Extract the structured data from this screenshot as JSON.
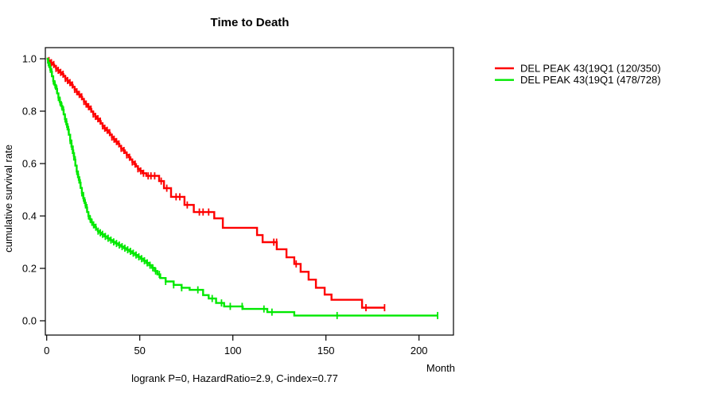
{
  "title": "Time to Death",
  "subtitle": "logrank P=0, HazardRatio=2.9, C-index=0.77",
  "axes": {
    "x": {
      "label": "Month",
      "ticks": [
        0,
        50,
        100,
        150,
        200
      ],
      "min": 0,
      "max": 218
    },
    "y": {
      "label": "cumulative survival rate",
      "ticks": [
        {
          "v": 0.0,
          "label": "0.0"
        },
        {
          "v": 0.2,
          "label": "0.2"
        },
        {
          "v": 0.4,
          "label": "0.4"
        },
        {
          "v": 0.6,
          "label": "0.6"
        },
        {
          "v": 0.8,
          "label": "0.8"
        },
        {
          "v": 1.0,
          "label": "1.0"
        }
      ],
      "min": 0.0,
      "max": 1.0
    }
  },
  "legend": {
    "items": [
      {
        "label": "DEL PEAK 43(19Q1 (120/350)",
        "color": "#fe0000"
      },
      {
        "label": "DEL PEAK 43(19Q1 (478/728)",
        "color": "#00e800"
      }
    ]
  },
  "chart_data": {
    "type": "line",
    "subtype": "kaplan_meier_step",
    "title": "Time to Death",
    "xlabel": "Month",
    "ylabel": "cumulative survival rate",
    "annotation": "logrank P=0, HazardRatio=2.9, C-index=0.77",
    "xlim": [
      0,
      218
    ],
    "ylim": [
      0.0,
      1.0
    ],
    "grid": false,
    "legend_position": "top-right-outside",
    "series": [
      {
        "name": "DEL PEAK 43(19Q1 (120/350)",
        "color": "#fe0000",
        "end_month": 181.5,
        "steps": [
          [
            0,
            1.0
          ],
          [
            1,
            0.993
          ],
          [
            2,
            0.985
          ],
          [
            3,
            0.978
          ],
          [
            4,
            0.971
          ],
          [
            5,
            0.963
          ],
          [
            6,
            0.956
          ],
          [
            7,
            0.948
          ],
          [
            8,
            0.941
          ],
          [
            9,
            0.933
          ],
          [
            10,
            0.925
          ],
          [
            11,
            0.917
          ],
          [
            12,
            0.909
          ],
          [
            13,
            0.9
          ],
          [
            14,
            0.892
          ],
          [
            15,
            0.883
          ],
          [
            16,
            0.874
          ],
          [
            17,
            0.864
          ],
          [
            18,
            0.855
          ],
          [
            19,
            0.846
          ],
          [
            20,
            0.837
          ],
          [
            21,
            0.827
          ],
          [
            22,
            0.817
          ],
          [
            23,
            0.808
          ],
          [
            24,
            0.798
          ],
          [
            25,
            0.789
          ],
          [
            26,
            0.78
          ],
          [
            27,
            0.771
          ],
          [
            28,
            0.762
          ],
          [
            29,
            0.753
          ],
          [
            30,
            0.744
          ],
          [
            31,
            0.735
          ],
          [
            32,
            0.727
          ],
          [
            33,
            0.718
          ],
          [
            34,
            0.71
          ],
          [
            35,
            0.701
          ],
          [
            36,
            0.693
          ],
          [
            37,
            0.684
          ],
          [
            38,
            0.675
          ],
          [
            39,
            0.667
          ],
          [
            40,
            0.658
          ],
          [
            41,
            0.65
          ],
          [
            42,
            0.641
          ],
          [
            43,
            0.633
          ],
          [
            44,
            0.624
          ],
          [
            45,
            0.615
          ],
          [
            46,
            0.606
          ],
          [
            47,
            0.598
          ],
          [
            48,
            0.589
          ],
          [
            49,
            0.58
          ],
          [
            50,
            0.572
          ],
          [
            51.5,
            0.563
          ],
          [
            53.5,
            0.553
          ],
          [
            60.4,
            0.533
          ],
          [
            63,
            0.506
          ],
          [
            66.8,
            0.473
          ],
          [
            74,
            0.442
          ],
          [
            79,
            0.415
          ],
          [
            90,
            0.391
          ],
          [
            94.6,
            0.355
          ],
          [
            113,
            0.327
          ],
          [
            116,
            0.3
          ],
          [
            123.6,
            0.273
          ],
          [
            128.8,
            0.242
          ],
          [
            133,
            0.217
          ],
          [
            136.4,
            0.187
          ],
          [
            140.7,
            0.157
          ],
          [
            144.6,
            0.126
          ],
          [
            149.3,
            0.1
          ],
          [
            153,
            0.08
          ],
          [
            169.4,
            0.05
          ]
        ],
        "censor_months": [
          1.2,
          2.5,
          3.8,
          5,
          6.2,
          7.5,
          8.8,
          10,
          11.2,
          12.5,
          13.8,
          15,
          16.2,
          17.5,
          18.8,
          20,
          21.2,
          22.5,
          23.8,
          25,
          26.2,
          27.5,
          28.8,
          30,
          31.2,
          32.5,
          33.8,
          35,
          36.2,
          37.5,
          38.8,
          40,
          41.5,
          43,
          44.5,
          46,
          47.5,
          49,
          50.5,
          52,
          54.5,
          56,
          58,
          61.5,
          64.5,
          69.5,
          71.5,
          75.5,
          82,
          84,
          87,
          122,
          123.5,
          134,
          171.5,
          181.5
        ]
      },
      {
        "name": "DEL PEAK 43(19Q1 (478/728)",
        "color": "#00e800",
        "end_month": 210,
        "steps": [
          [
            0,
            1.0
          ],
          [
            0.7,
            0.985
          ],
          [
            1.4,
            0.968
          ],
          [
            2.1,
            0.95
          ],
          [
            2.8,
            0.933
          ],
          [
            3.5,
            0.915
          ],
          [
            4.2,
            0.9
          ],
          [
            4.9,
            0.885
          ],
          [
            5.6,
            0.868
          ],
          [
            6.3,
            0.852
          ],
          [
            7,
            0.835
          ],
          [
            7.7,
            0.82
          ],
          [
            8.4,
            0.805
          ],
          [
            9.1,
            0.788
          ],
          [
            9.8,
            0.77
          ],
          [
            10.5,
            0.75
          ],
          [
            11.2,
            0.73
          ],
          [
            11.9,
            0.71
          ],
          [
            12.6,
            0.688
          ],
          [
            13.3,
            0.665
          ],
          [
            14,
            0.64
          ],
          [
            14.7,
            0.615
          ],
          [
            15.4,
            0.592
          ],
          [
            16.1,
            0.57
          ],
          [
            16.8,
            0.548
          ],
          [
            17.5,
            0.527
          ],
          [
            18.2,
            0.507
          ],
          [
            18.9,
            0.488
          ],
          [
            19.6,
            0.468
          ],
          [
            20.3,
            0.45
          ],
          [
            21,
            0.432
          ],
          [
            21.7,
            0.415
          ],
          [
            22.4,
            0.4
          ],
          [
            23.1,
            0.388
          ],
          [
            23.8,
            0.376
          ],
          [
            24.5,
            0.366
          ],
          [
            25.5,
            0.357
          ],
          [
            26.5,
            0.349
          ],
          [
            27.5,
            0.342
          ],
          [
            28.5,
            0.336
          ],
          [
            29.5,
            0.33
          ],
          [
            31,
            0.322
          ],
          [
            32.5,
            0.315
          ],
          [
            34,
            0.308
          ],
          [
            35.5,
            0.301
          ],
          [
            37,
            0.295
          ],
          [
            38.5,
            0.289
          ],
          [
            40,
            0.283
          ],
          [
            41.5,
            0.277
          ],
          [
            43,
            0.271
          ],
          [
            44.5,
            0.265
          ],
          [
            46,
            0.258
          ],
          [
            47.5,
            0.251
          ],
          [
            49,
            0.244
          ],
          [
            50.5,
            0.237
          ],
          [
            52,
            0.229
          ],
          [
            53.5,
            0.221
          ],
          [
            55,
            0.212
          ],
          [
            56.5,
            0.202
          ],
          [
            58,
            0.19
          ],
          [
            59.5,
            0.177
          ],
          [
            61,
            0.163
          ],
          [
            63.9,
            0.15
          ],
          [
            68.2,
            0.137
          ],
          [
            72.5,
            0.126
          ],
          [
            76.8,
            0.118
          ],
          [
            84,
            0.098
          ],
          [
            87,
            0.085
          ],
          [
            91,
            0.068
          ],
          [
            95.3,
            0.055
          ],
          [
            105.3,
            0.045
          ],
          [
            118.5,
            0.033
          ],
          [
            133,
            0.02
          ]
        ],
        "censor_months": [
          0.9,
          1.8,
          2.7,
          3.6,
          4.5,
          5.4,
          6.3,
          7.2,
          8.1,
          9,
          9.9,
          10.8,
          11.7,
          12.6,
          13.5,
          14.4,
          15.3,
          16.2,
          17.1,
          18,
          18.9,
          19.8,
          20.7,
          21.6,
          22.5,
          23.4,
          24.3,
          25.2,
          26.4,
          27.6,
          28.8,
          30,
          31.5,
          33,
          34.5,
          36,
          37.5,
          39,
          40.5,
          42,
          43.5,
          45,
          46.5,
          48,
          49.5,
          51,
          52.5,
          54,
          55.5,
          57,
          58.5,
          60.5,
          63.9,
          68.2,
          72.5,
          81.2,
          88.9,
          93.9,
          98.6,
          105,
          116.7,
          121,
          156,
          210
        ]
      }
    ]
  }
}
